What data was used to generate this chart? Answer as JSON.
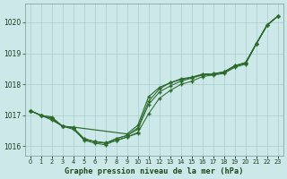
{
  "title": "Graphe pression niveau de la mer (hPa)",
  "background_color": "#cce8e8",
  "grid_color": "#aacece",
  "line_color": "#2d6a2d",
  "xlim": [
    -0.5,
    23.5
  ],
  "ylim": [
    1015.7,
    1020.6
  ],
  "yticks": [
    1016,
    1017,
    1018,
    1019,
    1020
  ],
  "xtick_labels": [
    "0",
    "1",
    "2",
    "3",
    "4",
    "5",
    "6",
    "7",
    "8",
    "9",
    "10",
    "11",
    "12",
    "13",
    "14",
    "15",
    "16",
    "17",
    "18",
    "19",
    "20",
    "21",
    "22",
    "23"
  ],
  "series_dip": [
    [
      1017.15,
      1017.0,
      1016.9,
      1016.65,
      1016.6,
      1016.2,
      1016.1,
      1016.05,
      1016.2,
      1016.3,
      1016.45,
      1017.05,
      1017.55,
      1017.8,
      1018.0,
      1018.1,
      1018.25,
      1018.3,
      1018.35,
      1018.55,
      1018.65,
      1019.3,
      1019.9,
      1020.2
    ],
    [
      1017.15,
      1017.0,
      1016.9,
      1016.65,
      1016.6,
      1016.25,
      1016.15,
      1016.1,
      1016.25,
      1016.35,
      1016.55,
      1017.35,
      1017.75,
      1017.95,
      1018.1,
      1018.2,
      1018.3,
      1018.32,
      1018.38,
      1018.58,
      1018.68,
      1019.3,
      1019.9,
      1020.2
    ],
    [
      1017.15,
      1017.0,
      1016.9,
      1016.65,
      1016.6,
      1016.25,
      1016.15,
      1016.1,
      1016.25,
      1016.35,
      1016.6,
      1017.45,
      1017.85,
      1018.05,
      1018.18,
      1018.23,
      1018.33,
      1018.34,
      1018.4,
      1018.6,
      1018.7,
      1019.32,
      1019.92,
      1020.2
    ]
  ],
  "series_straight": {
    "x": [
      0,
      1,
      2,
      3,
      4,
      9,
      10,
      11,
      12,
      13,
      14,
      15,
      16,
      17,
      18,
      19,
      20,
      21,
      22,
      23
    ],
    "y": [
      1017.15,
      1017.0,
      1016.95,
      1016.65,
      1016.62,
      1016.4,
      1016.68,
      1017.6,
      1017.9,
      1018.05,
      1018.15,
      1018.22,
      1018.32,
      1018.34,
      1018.4,
      1018.6,
      1018.7,
      1019.32,
      1019.92,
      1020.2
    ]
  },
  "series_low": {
    "x": [
      0,
      1,
      2,
      3,
      4,
      5,
      6,
      7,
      8,
      9,
      10
    ],
    "y": [
      1017.15,
      1017.0,
      1016.85,
      1016.65,
      1016.55,
      1016.22,
      1016.15,
      1016.12,
      1016.18,
      1016.3,
      1016.42
    ]
  }
}
